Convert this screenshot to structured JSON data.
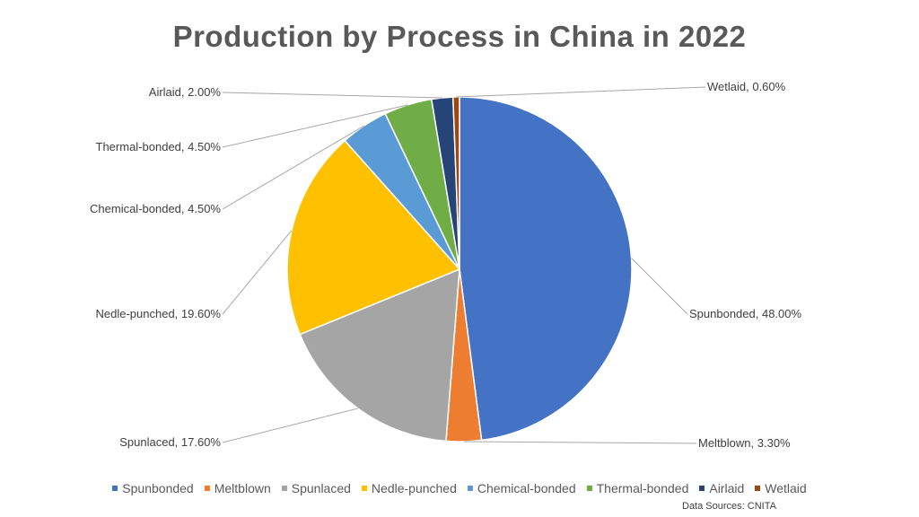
{
  "chart_data": {
    "type": "pie",
    "title": "Production by Process in China in 2022",
    "unit": "%",
    "slices": [
      {
        "name": "Spunbonded",
        "value": 48.0,
        "label": "Spunbonded, 48.00%",
        "color": "#4472C4"
      },
      {
        "name": "Meltblown",
        "value": 3.3,
        "label": "Meltblown, 3.30%",
        "color": "#ED7D31"
      },
      {
        "name": "Spunlaced",
        "value": 17.6,
        "label": "Spunlaced, 17.60%",
        "color": "#A5A5A5"
      },
      {
        "name": "Nedle-punched",
        "value": 19.6,
        "label": "Nedle-punched, 19.60%",
        "color": "#FFC000"
      },
      {
        "name": "Chemical-bonded",
        "value": 4.5,
        "label": "Chemical-bonded, 4.50%",
        "color": "#5B9BD5"
      },
      {
        "name": "Thermal-bonded",
        "value": 4.5,
        "label": "Thermal-bonded, 4.50%",
        "color": "#70AD47"
      },
      {
        "name": "Airlaid",
        "value": 2.0,
        "label": "Airlaid, 2.00%",
        "color": "#264478"
      },
      {
        "name": "Wetlaid",
        "value": 0.6,
        "label": "Wetlaid, 0.60%",
        "color": "#9E480E"
      }
    ],
    "legend_position": "bottom",
    "start_angle": "top, clockwise"
  },
  "source_text": "Data Sources:  CNITA"
}
